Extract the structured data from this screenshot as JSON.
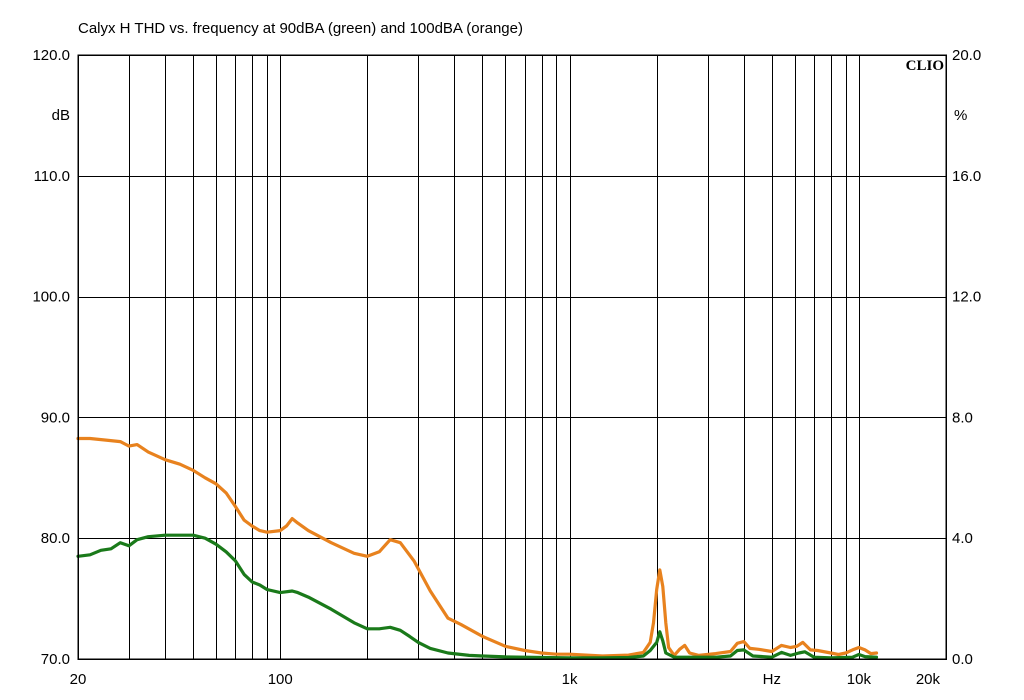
{
  "chart_data": {
    "type": "line",
    "title": "Calyx H THD vs. frequency at 90dBA (green) and 100dBA (orange)",
    "xscale": "log",
    "xlim": [
      20,
      20000
    ],
    "x_tick_labels": [
      {
        "value": 20,
        "label": "20"
      },
      {
        "value": 100,
        "label": "100"
      },
      {
        "value": 1000,
        "label": "1k"
      },
      {
        "value": 10000,
        "label": "10k"
      },
      {
        "value": 20000,
        "label": "20k"
      }
    ],
    "x_unit_label": {
      "value": 5000,
      "label": "Hz"
    },
    "ylim": [
      70,
      120
    ],
    "y_unit": "dB",
    "y_tick_labels": [
      "70.0",
      "80.0",
      "90.0",
      "100.0",
      "110.0",
      "120.0"
    ],
    "y_ticks": [
      70,
      80,
      90,
      100,
      110,
      120
    ],
    "y2lim": [
      0,
      20
    ],
    "y2_unit": "%",
    "y2_tick_labels": [
      "0.0",
      "4.0",
      "8.0",
      "12.0",
      "16.0",
      "20.0"
    ],
    "y2_ticks": [
      0,
      4,
      8,
      12,
      16,
      20
    ],
    "grid": true,
    "brand_label": "CLIO",
    "series": [
      {
        "color": "#e8821e",
        "axis": "y2",
        "points": [
          [
            20,
            7.3
          ],
          [
            22,
            7.3
          ],
          [
            25,
            7.25
          ],
          [
            28,
            7.2
          ],
          [
            30,
            7.05
          ],
          [
            32,
            7.1
          ],
          [
            35,
            6.85
          ],
          [
            40,
            6.6
          ],
          [
            45,
            6.45
          ],
          [
            50,
            6.25
          ],
          [
            55,
            6.0
          ],
          [
            60,
            5.8
          ],
          [
            65,
            5.5
          ],
          [
            70,
            5.05
          ],
          [
            75,
            4.6
          ],
          [
            80,
            4.4
          ],
          [
            85,
            4.25
          ],
          [
            90,
            4.2
          ],
          [
            100,
            4.25
          ],
          [
            105,
            4.4
          ],
          [
            110,
            4.65
          ],
          [
            115,
            4.5
          ],
          [
            125,
            4.25
          ],
          [
            150,
            3.85
          ],
          [
            180,
            3.5
          ],
          [
            200,
            3.4
          ],
          [
            220,
            3.55
          ],
          [
            240,
            3.95
          ],
          [
            260,
            3.85
          ],
          [
            290,
            3.25
          ],
          [
            330,
            2.25
          ],
          [
            380,
            1.35
          ],
          [
            420,
            1.15
          ],
          [
            500,
            0.75
          ],
          [
            600,
            0.42
          ],
          [
            700,
            0.28
          ],
          [
            800,
            0.2
          ],
          [
            900,
            0.16
          ],
          [
            1000,
            0.16
          ],
          [
            1300,
            0.1
          ],
          [
            1600,
            0.13
          ],
          [
            1800,
            0.22
          ],
          [
            1900,
            0.55
          ],
          [
            1950,
            1.2
          ],
          [
            2000,
            2.3
          ],
          [
            2050,
            2.95
          ],
          [
            2100,
            2.4
          ],
          [
            2150,
            1.2
          ],
          [
            2200,
            0.38
          ],
          [
            2300,
            0.12
          ],
          [
            2400,
            0.32
          ],
          [
            2500,
            0.45
          ],
          [
            2600,
            0.2
          ],
          [
            2800,
            0.12
          ],
          [
            3200,
            0.18
          ],
          [
            3600,
            0.25
          ],
          [
            3800,
            0.52
          ],
          [
            4000,
            0.58
          ],
          [
            4200,
            0.35
          ],
          [
            4500,
            0.32
          ],
          [
            5000,
            0.25
          ],
          [
            5400,
            0.45
          ],
          [
            5800,
            0.38
          ],
          [
            6100,
            0.42
          ],
          [
            6400,
            0.55
          ],
          [
            6800,
            0.3
          ],
          [
            7200,
            0.28
          ],
          [
            8000,
            0.2
          ],
          [
            8500,
            0.15
          ],
          [
            9000,
            0.2
          ],
          [
            9500,
            0.3
          ],
          [
            10000,
            0.38
          ],
          [
            10500,
            0.3
          ],
          [
            11000,
            0.18
          ],
          [
            11500,
            0.2
          ]
        ]
      },
      {
        "color": "#1a7a1a",
        "axis": "y2",
        "points": [
          [
            20,
            3.4
          ],
          [
            22,
            3.45
          ],
          [
            24,
            3.6
          ],
          [
            26,
            3.65
          ],
          [
            28,
            3.85
          ],
          [
            30,
            3.75
          ],
          [
            32,
            3.95
          ],
          [
            35,
            4.05
          ],
          [
            40,
            4.1
          ],
          [
            50,
            4.1
          ],
          [
            55,
            4.0
          ],
          [
            60,
            3.8
          ],
          [
            65,
            3.55
          ],
          [
            70,
            3.25
          ],
          [
            75,
            2.8
          ],
          [
            80,
            2.55
          ],
          [
            85,
            2.45
          ],
          [
            90,
            2.3
          ],
          [
            100,
            2.2
          ],
          [
            110,
            2.25
          ],
          [
            115,
            2.2
          ],
          [
            125,
            2.05
          ],
          [
            150,
            1.65
          ],
          [
            180,
            1.2
          ],
          [
            200,
            1.0
          ],
          [
            220,
            1.0
          ],
          [
            240,
            1.05
          ],
          [
            260,
            0.95
          ],
          [
            280,
            0.75
          ],
          [
            300,
            0.55
          ],
          [
            330,
            0.35
          ],
          [
            380,
            0.2
          ],
          [
            450,
            0.12
          ],
          [
            500,
            0.1
          ],
          [
            600,
            0.07
          ],
          [
            800,
            0.05
          ],
          [
            1000,
            0.04
          ],
          [
            1300,
            0.04
          ],
          [
            1600,
            0.05
          ],
          [
            1800,
            0.1
          ],
          [
            1900,
            0.28
          ],
          [
            2000,
            0.55
          ],
          [
            2050,
            0.9
          ],
          [
            2100,
            0.6
          ],
          [
            2150,
            0.2
          ],
          [
            2300,
            0.06
          ],
          [
            2600,
            0.06
          ],
          [
            3200,
            0.06
          ],
          [
            3600,
            0.1
          ],
          [
            3800,
            0.28
          ],
          [
            4000,
            0.3
          ],
          [
            4300,
            0.1
          ],
          [
            5000,
            0.06
          ],
          [
            5400,
            0.22
          ],
          [
            5800,
            0.12
          ],
          [
            6200,
            0.2
          ],
          [
            6500,
            0.24
          ],
          [
            7000,
            0.06
          ],
          [
            8000,
            0.04
          ],
          [
            9500,
            0.06
          ],
          [
            10000,
            0.15
          ],
          [
            10500,
            0.08
          ],
          [
            11500,
            0.06
          ]
        ]
      }
    ]
  }
}
